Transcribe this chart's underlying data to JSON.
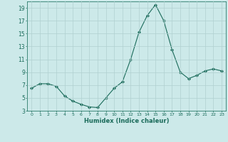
{
  "x": [
    0,
    1,
    2,
    3,
    4,
    5,
    6,
    7,
    8,
    9,
    10,
    11,
    12,
    13,
    14,
    15,
    16,
    17,
    18,
    19,
    20,
    21,
    22,
    23
  ],
  "y": [
    6.5,
    7.2,
    7.2,
    6.8,
    5.3,
    4.5,
    4.0,
    3.6,
    3.5,
    5.0,
    6.5,
    7.5,
    11.0,
    15.2,
    17.8,
    19.5,
    17.0,
    12.5,
    9.0,
    8.0,
    8.5,
    9.2,
    9.5,
    9.2
  ],
  "line_color": "#1a6b5a",
  "marker": "D",
  "marker_size": 2.0,
  "background_color": "#cce9e9",
  "grid_color": "#b0d0d0",
  "xlabel": "Humidex (Indice chaleur)",
  "xlim": [
    -0.5,
    23.5
  ],
  "ylim": [
    3,
    20
  ],
  "yticks": [
    3,
    5,
    7,
    9,
    11,
    13,
    15,
    17,
    19
  ],
  "xticks": [
    0,
    1,
    2,
    3,
    4,
    5,
    6,
    7,
    8,
    9,
    10,
    11,
    12,
    13,
    14,
    15,
    16,
    17,
    18,
    19,
    20,
    21,
    22,
    23
  ]
}
